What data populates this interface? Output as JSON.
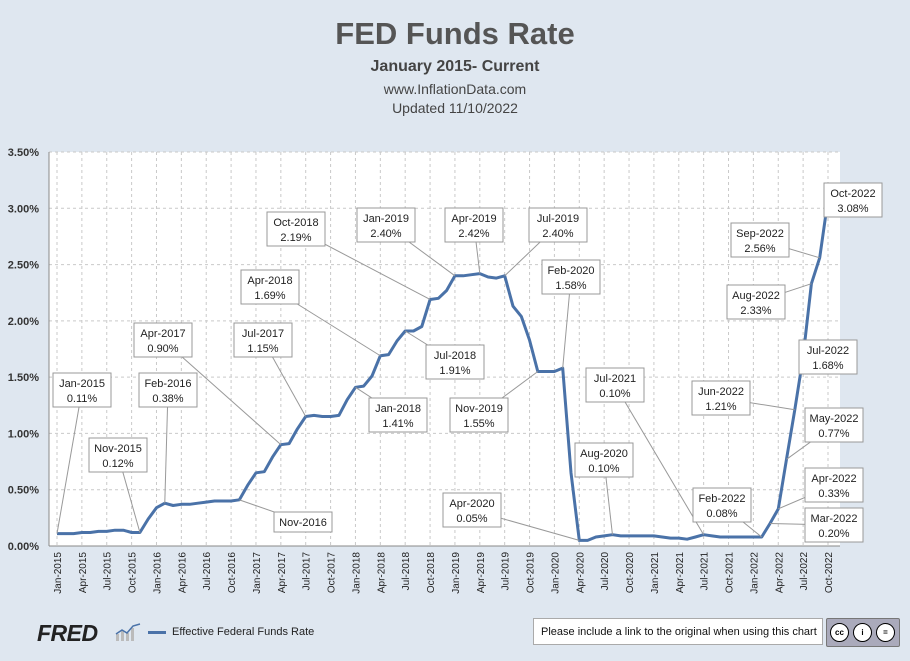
{
  "header": {
    "title": "FED Funds Rate",
    "subtitle": "January 2015- Current",
    "website": "www.InflationData.com",
    "updated": "Updated 11/10/2022"
  },
  "footer": {
    "brand": "FRED",
    "legend_label": "Effective Federal Funds Rate",
    "notice": "Please include a link to the original when using this chart"
  },
  "colors": {
    "line": "#4a72a8",
    "background": "#dfe7f0",
    "plot": "#ffffff",
    "grid": "#c9c9c9"
  },
  "chart_data": {
    "type": "line",
    "title": "FED Funds Rate",
    "series": [
      {
        "name": "Effective Federal Funds Rate",
        "start": "2015-01",
        "values": [
          0.11,
          0.11,
          0.11,
          0.12,
          0.12,
          0.13,
          0.13,
          0.14,
          0.14,
          0.12,
          0.12,
          0.24,
          0.34,
          0.38,
          0.36,
          0.37,
          0.37,
          0.38,
          0.39,
          0.4,
          0.4,
          0.4,
          0.41,
          0.54,
          0.65,
          0.66,
          0.79,
          0.9,
          0.91,
          1.04,
          1.15,
          1.16,
          1.15,
          1.15,
          1.16,
          1.3,
          1.41,
          1.42,
          1.51,
          1.69,
          1.7,
          1.82,
          1.91,
          1.91,
          1.95,
          2.19,
          2.2,
          2.27,
          2.4,
          2.4,
          2.41,
          2.42,
          2.39,
          2.38,
          2.4,
          2.13,
          2.04,
          1.83,
          1.55,
          1.55,
          1.55,
          1.58,
          0.65,
          0.05,
          0.05,
          0.08,
          0.09,
          0.1,
          0.09,
          0.09,
          0.09,
          0.09,
          0.09,
          0.08,
          0.07,
          0.07,
          0.06,
          0.08,
          0.1,
          0.09,
          0.08,
          0.08,
          0.08,
          0.08,
          0.08,
          0.08,
          0.2,
          0.33,
          0.77,
          1.21,
          1.68,
          2.33,
          2.56,
          3.08
        ]
      }
    ],
    "x_tick_labels": [
      "Jan-2015",
      "Apr-2015",
      "Jul-2015",
      "Oct-2015",
      "Jan-2016",
      "Apr-2016",
      "Jul-2016",
      "Oct-2016",
      "Jan-2017",
      "Apr-2017",
      "Jul-2017",
      "Oct-2017",
      "Jan-2018",
      "Apr-2018",
      "Jul-2018",
      "Oct-2018",
      "Jan-2019",
      "Apr-2019",
      "Jul-2019",
      "Oct-2019",
      "Jan-2020",
      "Apr-2020",
      "Jul-2020",
      "Oct-2020",
      "Jan-2021",
      "Apr-2021",
      "Jul-2021",
      "Oct-2021",
      "Jan-2022",
      "Apr-2022",
      "Jul-2022",
      "Oct-2022"
    ],
    "y_tick_labels": [
      "0.00%",
      "0.50%",
      "1.00%",
      "1.50%",
      "2.00%",
      "2.50%",
      "3.00%",
      "3.50%"
    ],
    "ylim": [
      0,
      3.5
    ],
    "grid": true,
    "annotations": [
      {
        "month": "Jan-2015",
        "value": "0.11%",
        "index": 0
      },
      {
        "month": "Nov-2015",
        "value": "0.12%",
        "index": 10
      },
      {
        "month": "Feb-2016",
        "value": "0.38%",
        "index": 13
      },
      {
        "month": "Apr-2017",
        "value": "0.90%",
        "index": 27
      },
      {
        "month": "Nov-2016",
        "value": "",
        "index": 22
      },
      {
        "month": "Jul-2017",
        "value": "1.15%",
        "index": 30
      },
      {
        "month": "Apr-2018",
        "value": "1.69%",
        "index": 39
      },
      {
        "month": "Oct-2018",
        "value": "2.19%",
        "index": 45
      },
      {
        "month": "Jan-2018",
        "value": "1.41%",
        "index": 36
      },
      {
        "month": "Jul-2018",
        "value": "1.91%",
        "index": 42
      },
      {
        "month": "Jan-2019",
        "value": "2.40%",
        "index": 48
      },
      {
        "month": "Apr-2019",
        "value": "2.42%",
        "index": 51
      },
      {
        "month": "Jul-2019",
        "value": "2.40%",
        "index": 54
      },
      {
        "month": "Nov-2019",
        "value": "1.55%",
        "index": 58
      },
      {
        "month": "Feb-2020",
        "value": "1.58%",
        "index": 61
      },
      {
        "month": "Apr-2020",
        "value": "0.05%",
        "index": 63
      },
      {
        "month": "Aug-2020",
        "value": "0.10%",
        "index": 67
      },
      {
        "month": "Jul-2021",
        "value": "0.10%",
        "index": 78
      },
      {
        "month": "Feb-2022",
        "value": "0.08%",
        "index": 85
      },
      {
        "month": "Mar-2022",
        "value": "0.20%",
        "index": 86
      },
      {
        "month": "Apr-2022",
        "value": "0.33%",
        "index": 87
      },
      {
        "month": "May-2022",
        "value": "0.77%",
        "index": 88
      },
      {
        "month": "Jun-2022",
        "value": "1.21%",
        "index": 89
      },
      {
        "month": "Jul-2022",
        "value": "1.68%",
        "index": 90
      },
      {
        "month": "Aug-2022",
        "value": "2.33%",
        "index": 91
      },
      {
        "month": "Sep-2022",
        "value": "2.56%",
        "index": 92
      },
      {
        "month": "Oct-2022",
        "value": "3.08%",
        "index": 93
      }
    ]
  }
}
